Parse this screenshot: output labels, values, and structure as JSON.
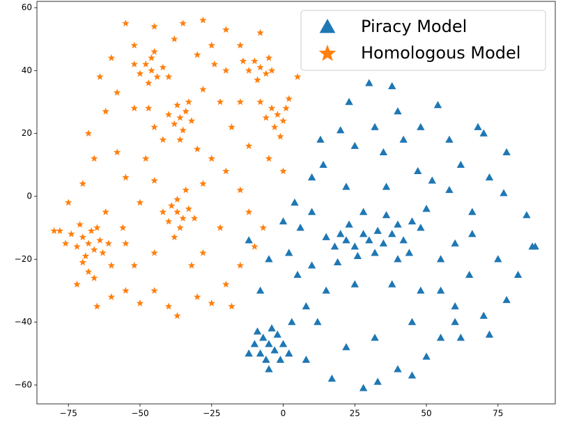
{
  "chart_data": {
    "type": "scatter",
    "series": [
      {
        "name": "Homologous Model",
        "color": "#ff7f0e",
        "marker": "star",
        "x": [
          -68,
          -70,
          -66,
          -72,
          -64,
          -69,
          -67,
          -74,
          -63,
          -70,
          -65,
          -76,
          -61,
          -68,
          -71,
          -78,
          -66,
          -46,
          -48,
          -44,
          -50,
          -42,
          -46,
          -47,
          -52,
          -40,
          -45,
          -36,
          -38,
          -34,
          -37,
          -35,
          -40,
          -32,
          -36,
          -33,
          -37,
          -39,
          -35,
          -40,
          -33,
          -37,
          -36,
          -42,
          -31,
          -38,
          -34,
          -8,
          -10,
          -6,
          -12,
          -5,
          -9,
          -14,
          -4,
          -2,
          -4,
          0,
          -3,
          1,
          -6,
          2,
          -1,
          -55,
          -45,
          -35,
          -28,
          -20,
          -15,
          -25,
          -38,
          -52,
          -60,
          -64,
          -58,
          -62,
          -68,
          -66,
          -70,
          -75,
          -80,
          -72,
          -60,
          -55,
          -50,
          -45,
          -40,
          -37,
          -30,
          -25,
          -20,
          -15,
          -10,
          -7,
          -12,
          -15,
          -20,
          -25,
          -28,
          -22,
          -28,
          -45,
          -52,
          -56,
          -50,
          -55,
          -58,
          -48,
          -45,
          -52,
          -28,
          -22,
          -18,
          -12,
          -5,
          0,
          5,
          -20,
          -24,
          -30,
          -55,
          -62,
          -45,
          -30,
          -15,
          -8,
          -18,
          -65,
          -47,
          -42,
          -60,
          -32,
          -8
        ],
        "y": [
          -15,
          -13,
          -17,
          -16,
          -14,
          -19,
          -11,
          -12,
          -18,
          -21,
          -10,
          -15,
          -15,
          -24,
          -9,
          -11,
          -26,
          40,
          42,
          38,
          39,
          41,
          44,
          36,
          42,
          38,
          46,
          25,
          23,
          27,
          29,
          21,
          26,
          24,
          18,
          30,
          -5,
          -3,
          -7,
          -8,
          -4,
          -1,
          -10,
          -5,
          -7,
          -13,
          2,
          41,
          43,
          39,
          40,
          44,
          37,
          43,
          40,
          26,
          28,
          24,
          22,
          28,
          25,
          31,
          19,
          55,
          54,
          55,
          56,
          53,
          48,
          48,
          50,
          48,
          44,
          38,
          33,
          27,
          20,
          12,
          4,
          -2,
          -11,
          -28,
          -32,
          -30,
          -34,
          -30,
          -35,
          -38,
          -32,
          -34,
          -28,
          -22,
          -16,
          -10,
          -5,
          2,
          8,
          12,
          4,
          -10,
          -18,
          -18,
          -22,
          -10,
          -2,
          6,
          14,
          12,
          22,
          28,
          34,
          30,
          22,
          16,
          12,
          8,
          38,
          40,
          42,
          45,
          -15,
          -5,
          5,
          15,
          30,
          30,
          -35,
          -35,
          28,
          18,
          -22,
          -22,
          52
        ]
      },
      {
        "name": "Piracy Model",
        "color": "#1f77b4",
        "marker": "triangle",
        "x": [
          -5,
          -7,
          -3,
          -8,
          -2,
          -6,
          -10,
          0,
          -4,
          -9,
          -1,
          -12,
          -5,
          2,
          22,
          20,
          25,
          18,
          28,
          30,
          33,
          35,
          38,
          26,
          23,
          32,
          40,
          45,
          42,
          48,
          15,
          36,
          28,
          50,
          44,
          19,
          30,
          38,
          23,
          40,
          54,
          68,
          48,
          58,
          20,
          13,
          32,
          42,
          10,
          14,
          25,
          35,
          47,
          62,
          72,
          78,
          77,
          85,
          87,
          82,
          78,
          70,
          72,
          75,
          65,
          60,
          55,
          50,
          40,
          33,
          28,
          17,
          8,
          22,
          32,
          45,
          55,
          60,
          66,
          58,
          52,
          62,
          48,
          38,
          25,
          15,
          8,
          5,
          2,
          0,
          4,
          6,
          10,
          12,
          3,
          -8,
          -5,
          -12,
          88,
          70,
          36,
          22,
          10,
          40,
          55,
          66,
          45,
          60
        ],
        "y": [
          -47,
          -45,
          -49,
          -50,
          -44,
          -52,
          -47,
          -47,
          -42,
          -43,
          -52,
          -50,
          -55,
          -50,
          -14,
          -12,
          -16,
          -16,
          -12,
          -14,
          -11,
          -15,
          -12,
          -19,
          -9,
          -18,
          -9,
          -8,
          -14,
          -10,
          -13,
          -6,
          -5,
          -4,
          -18,
          -21,
          36,
          35,
          30,
          27,
          29,
          22,
          22,
          18,
          21,
          18,
          22,
          18,
          6,
          10,
          16,
          14,
          8,
          10,
          6,
          14,
          1,
          -6,
          -16,
          -25,
          -33,
          -38,
          -44,
          -20,
          -25,
          -35,
          -45,
          -51,
          -55,
          -59,
          -61,
          -58,
          -52,
          -48,
          -45,
          -40,
          -30,
          -15,
          -5,
          2,
          5,
          -45,
          -30,
          -28,
          -28,
          -30,
          -35,
          -25,
          -18,
          -8,
          -2,
          -10,
          -22,
          -40,
          -40,
          -30,
          -20,
          -14,
          -16,
          20,
          3,
          3,
          -5,
          -20,
          -20,
          -12,
          -57,
          -40
        ]
      }
    ],
    "legend_order": [
      "chart_data.series.1",
      "chart_data.series.0"
    ],
    "legend": "upper right",
    "xlim": [
      -86,
      95
    ],
    "ylim": [
      -66,
      62
    ],
    "xticks": [
      {
        "value": -75,
        "label": "−75"
      },
      {
        "value": -50,
        "label": "−50"
      },
      {
        "value": -25,
        "label": "−25"
      },
      0,
      25,
      50,
      75
    ],
    "yticks": [
      {
        "value": -60,
        "label": "−60"
      },
      {
        "value": -40,
        "label": "−40"
      },
      {
        "value": -20,
        "label": "−20"
      },
      0,
      20,
      40,
      60
    ]
  }
}
